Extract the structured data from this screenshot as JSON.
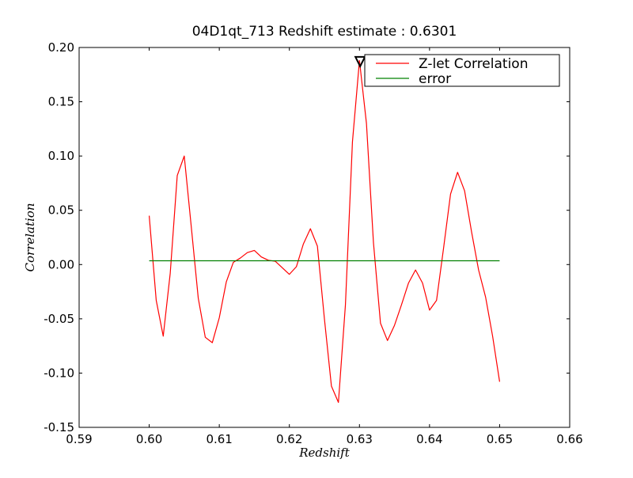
{
  "chart_data": {
    "type": "line",
    "title": "04D1qt_713 Redshift estimate : 0.6301",
    "xlabel": "Redshift",
    "ylabel": "Correlation",
    "xlim": [
      0.59,
      0.66
    ],
    "ylim": [
      -0.15,
      0.2
    ],
    "xticks": [
      0.59,
      0.6,
      0.61,
      0.62,
      0.63,
      0.64,
      0.65,
      0.66
    ],
    "xtick_labels": [
      "0.59",
      "0.60",
      "0.61",
      "0.62",
      "0.63",
      "0.64",
      "0.65",
      "0.66"
    ],
    "yticks": [
      -0.15,
      -0.1,
      -0.05,
      0.0,
      0.05,
      0.1,
      0.15,
      0.2
    ],
    "ytick_labels": [
      "-0.15",
      "-0.10",
      "-0.05",
      "0.00",
      "0.05",
      "0.10",
      "0.15",
      "0.20"
    ],
    "grid": false,
    "legend_position": "top-right",
    "colors": {
      "correlation": "#ff0000",
      "error": "#008000",
      "marker": "#000000"
    },
    "series": [
      {
        "name": "Z-let Correlation",
        "x": [
          0.6,
          0.601,
          0.602,
          0.603,
          0.604,
          0.605,
          0.606,
          0.607,
          0.608,
          0.609,
          0.61,
          0.611,
          0.612,
          0.613,
          0.614,
          0.615,
          0.616,
          0.617,
          0.618,
          0.619,
          0.62,
          0.621,
          0.622,
          0.623,
          0.624,
          0.625,
          0.626,
          0.627,
          0.628,
          0.629,
          0.63,
          0.631,
          0.632,
          0.633,
          0.634,
          0.635,
          0.636,
          0.637,
          0.638,
          0.639,
          0.64,
          0.641,
          0.642,
          0.643,
          0.644,
          0.645,
          0.646,
          0.647,
          0.648,
          0.649,
          0.65
        ],
        "y": [
          0.045,
          -0.033,
          -0.066,
          -0.008,
          0.082,
          0.1,
          0.035,
          -0.031,
          -0.067,
          -0.072,
          -0.049,
          -0.016,
          0.002,
          0.006,
          0.011,
          0.013,
          0.007,
          0.004,
          0.003,
          -0.003,
          -0.009,
          -0.002,
          0.019,
          0.033,
          0.017,
          -0.05,
          -0.112,
          -0.127,
          -0.037,
          0.113,
          0.188,
          0.13,
          0.02,
          -0.054,
          -0.07,
          -0.056,
          -0.037,
          -0.017,
          -0.005,
          -0.017,
          -0.042,
          -0.033,
          0.015,
          0.065,
          0.085,
          0.068,
          0.03,
          -0.005,
          -0.03,
          -0.066,
          -0.108
        ]
      },
      {
        "name": "error",
        "x": [
          0.6,
          0.65
        ],
        "y": [
          0.0035,
          0.0035
        ]
      }
    ],
    "marker": {
      "x": 0.6301,
      "y": 0.187,
      "shape": "triangle-down"
    }
  }
}
